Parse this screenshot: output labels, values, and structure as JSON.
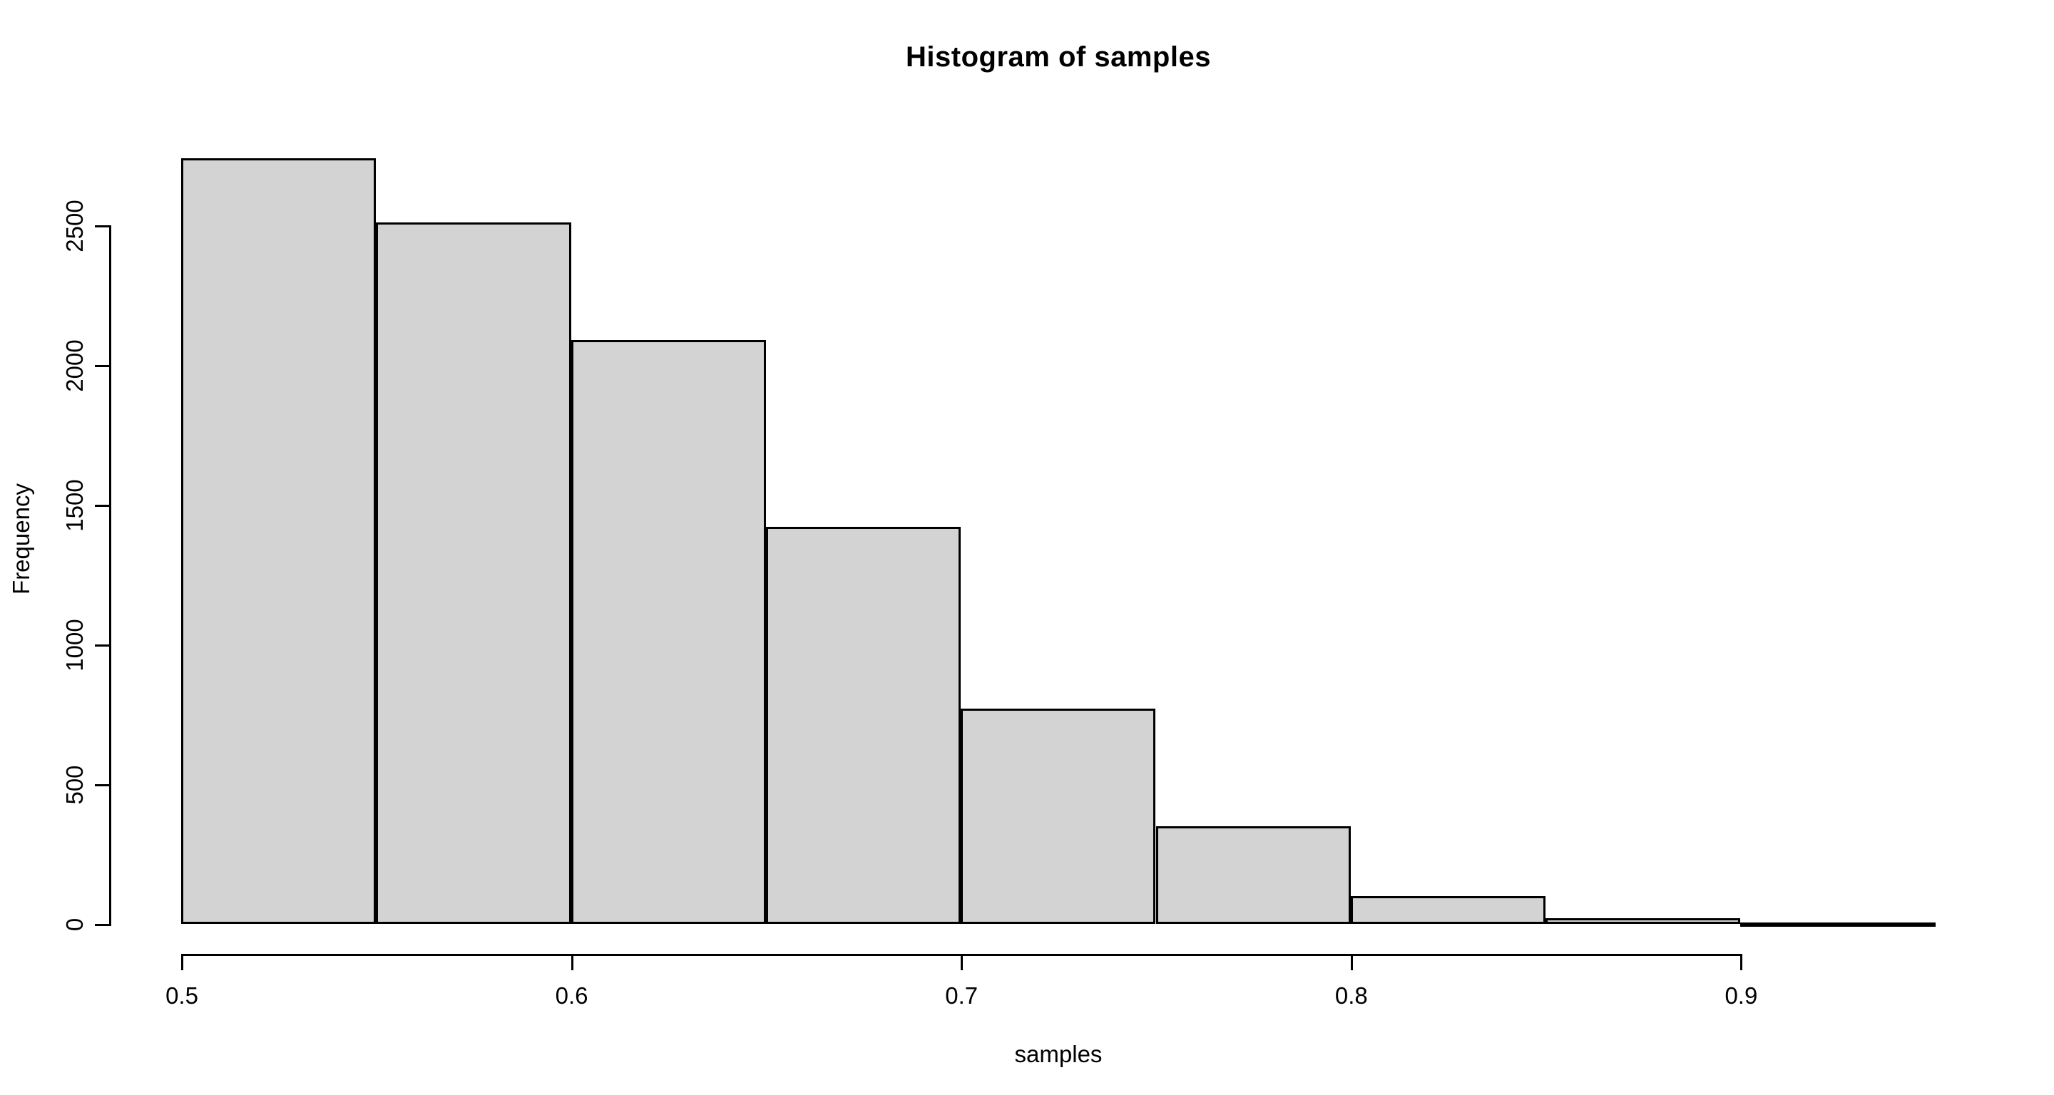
{
  "title": "Histogram of samples",
  "chart_data": {
    "type": "bar",
    "subtype": "histogram",
    "title": "Histogram of samples",
    "xlabel": "samples",
    "ylabel": "Frequency",
    "bin_edges": [
      0.5,
      0.55,
      0.6,
      0.65,
      0.7,
      0.75,
      0.8,
      0.85,
      0.9,
      0.95
    ],
    "categories": [
      "0.50-0.55",
      "0.55-0.60",
      "0.60-0.65",
      "0.65-0.70",
      "0.70-0.75",
      "0.75-0.80",
      "0.80-0.85",
      "0.85-0.90",
      "0.90-0.95"
    ],
    "values": [
      2740,
      2510,
      2090,
      1420,
      770,
      350,
      100,
      20,
      4
    ],
    "x_ticks": [
      0.5,
      0.6,
      0.7,
      0.8,
      0.9
    ],
    "y_ticks": [
      0,
      500,
      1000,
      1500,
      2000,
      2500
    ],
    "xlim": [
      0.5,
      0.95
    ],
    "ylim": [
      0,
      2800
    ],
    "grid": false,
    "legend": false,
    "bar_fill_color": "#d3d3d3",
    "bar_border_color": "#000000",
    "axis_color": "#000000",
    "background_color": "#ffffff"
  }
}
